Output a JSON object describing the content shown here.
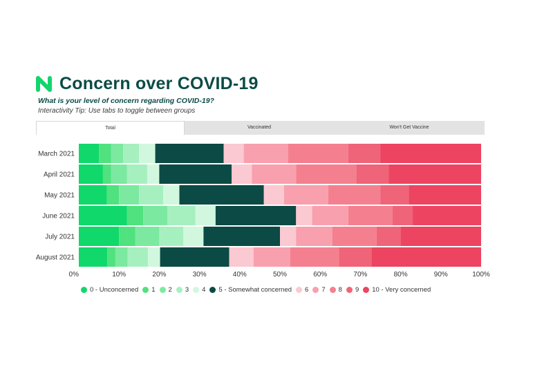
{
  "header": {
    "title": "Concern over COVID-19",
    "subtitle": "What is your level of concern regarding COVID-19?",
    "tip": "Interactivity Tip: Use tabs to toggle between groups"
  },
  "tabs": [
    {
      "label": "Total",
      "active": true
    },
    {
      "label": "Vaccinated",
      "active": false
    },
    {
      "label": "Won't Get Vaccine",
      "active": false
    }
  ],
  "chart_data": {
    "type": "bar",
    "orientation": "horizontal",
    "stacked": true,
    "percent_scale": true,
    "categories": [
      "March 2021",
      "April 2021",
      "May 2021",
      "June 2021",
      "July 2021",
      "August 2021"
    ],
    "xlim": [
      0,
      100
    ],
    "x_ticks": [
      "0%",
      "10%",
      "20%",
      "30%",
      "40%",
      "50%",
      "60%",
      "70%",
      "80%",
      "90%",
      "100%"
    ],
    "legend_position": "bottom",
    "series": [
      {
        "name": "0 - Unconcerned",
        "color": "#10d86a",
        "values": [
          5,
          6,
          7,
          12,
          10,
          7
        ]
      },
      {
        "name": "1",
        "color": "#4fe27e",
        "values": [
          3,
          2,
          3,
          4,
          4,
          2
        ]
      },
      {
        "name": "2",
        "color": "#7ce9a0",
        "values": [
          3,
          4,
          5,
          6,
          6,
          3
        ]
      },
      {
        "name": "3",
        "color": "#a6f0c0",
        "values": [
          4,
          5,
          6,
          7,
          6,
          5
        ]
      },
      {
        "name": "4",
        "color": "#d2f7df",
        "values": [
          4,
          3,
          4,
          5,
          5,
          3
        ]
      },
      {
        "name": "5 - Somewhat concerned",
        "color": "#0c4a45",
        "values": [
          17,
          18,
          21,
          20,
          19,
          17
        ]
      },
      {
        "name": "6",
        "color": "#fbc9d1",
        "values": [
          5,
          5,
          5,
          4,
          4,
          6
        ]
      },
      {
        "name": "7",
        "color": "#f8a0ae",
        "values": [
          11,
          11,
          11,
          9,
          9,
          9
        ]
      },
      {
        "name": "8",
        "color": "#f4808f",
        "values": [
          15,
          15,
          13,
          11,
          11,
          12
        ]
      },
      {
        "name": "9",
        "color": "#ef6478",
        "values": [
          8,
          8,
          7,
          5,
          6,
          8
        ]
      },
      {
        "name": "10 - Very concerned",
        "color": "#ec4461",
        "values": [
          25,
          23,
          18,
          17,
          20,
          27
        ]
      }
    ]
  }
}
